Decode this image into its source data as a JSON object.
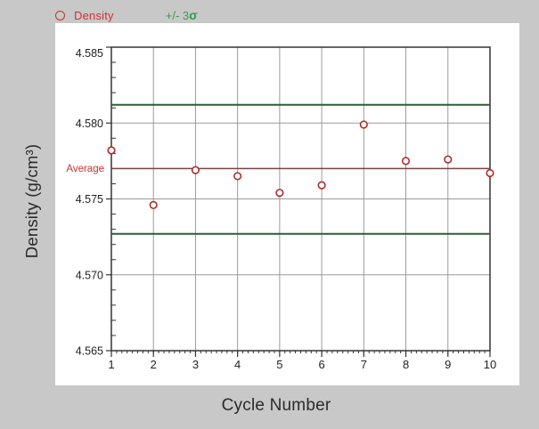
{
  "colors": {
    "page_bg": "#c8c8c8",
    "card_bg": "#ffffff",
    "legend_density": "#d23232",
    "legend_sigma": "#3a9e4a",
    "marker": "#b02c2c",
    "sigma_line": "#2e5e32",
    "average_line": "#7a4343",
    "grid": "#9a9a9a",
    "axis": "#333333",
    "tick_text": "#222222"
  },
  "legend": {
    "density_label": "Density",
    "sigma_label": "+/- 3",
    "sigma_symbol": "σ"
  },
  "chart_data": {
    "type": "scatter",
    "series_name": "Density",
    "xlabel": "Cycle Number",
    "ylabel": "Density (g/cm³)",
    "x": [
      1,
      2,
      3,
      4,
      5,
      6,
      7,
      8,
      9,
      10
    ],
    "values": [
      4.5782,
      4.5746,
      4.5769,
      4.5765,
      4.5754,
      4.5759,
      4.5799,
      4.5775,
      4.5776,
      4.5767
    ],
    "average_label": "Average",
    "average_value": 4.577,
    "upper_3sigma": 4.5812,
    "lower_3sigma": 4.5727,
    "xlim": [
      1,
      10
    ],
    "ylim": [
      4.565,
      4.585
    ],
    "yticks": [
      4.585,
      4.58,
      4.575,
      4.57,
      4.565
    ],
    "ytick_labels": [
      "4.585",
      "4.580",
      "4.575",
      "4.570",
      "4.565"
    ],
    "xtick_labels": [
      "1",
      "2",
      "3",
      "4",
      "5",
      "6",
      "7",
      "8",
      "9",
      "10"
    ],
    "y_minor_step": 0.001,
    "x_minor_divisions": 8,
    "grid": true,
    "legend_position": "top-left"
  }
}
